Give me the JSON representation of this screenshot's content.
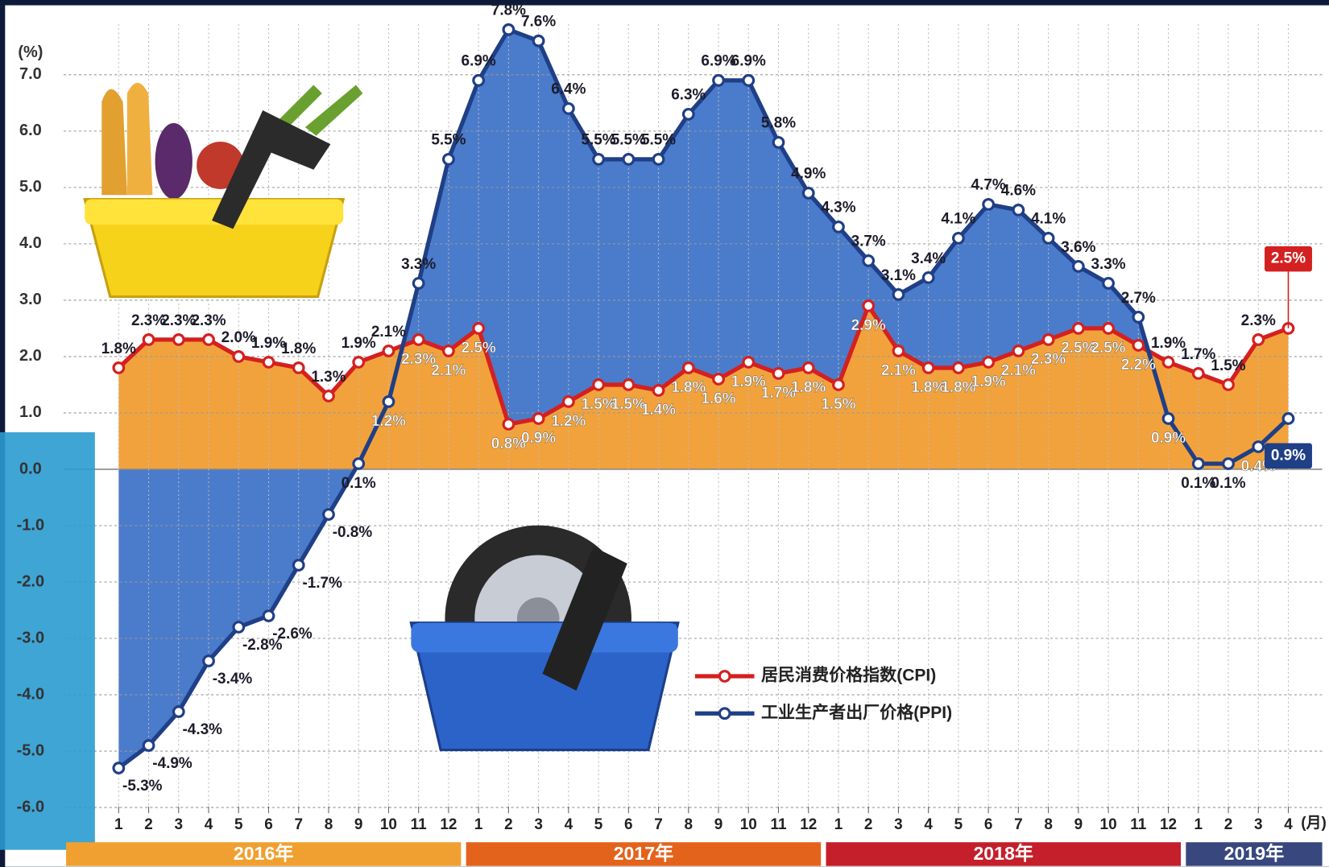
{
  "chart_data": {
    "type": "line",
    "y_unit": "(%)",
    "x_unit": "(月)",
    "categories": [
      "1",
      "2",
      "3",
      "4",
      "5",
      "6",
      "7",
      "8",
      "9",
      "10",
      "11",
      "12",
      "1",
      "2",
      "3",
      "4",
      "5",
      "6",
      "7",
      "8",
      "9",
      "10",
      "11",
      "12",
      "1",
      "2",
      "3",
      "4",
      "5",
      "6",
      "7",
      "8",
      "9",
      "10",
      "11",
      "12",
      "1",
      "2",
      "3",
      "4"
    ],
    "years": [
      "2016年",
      "2017年",
      "2018年",
      "2019年"
    ],
    "year_colors": [
      "#f0a030",
      "#e4631c",
      "#c41f2a",
      "#38487e"
    ],
    "series": [
      {
        "name": "居民消费价格指数(CPI)",
        "color": "#d42020",
        "fill": "#f2a23c",
        "values": [
          1.8,
          2.3,
          2.3,
          2.3,
          2.0,
          1.9,
          1.8,
          1.3,
          1.9,
          2.1,
          2.3,
          2.1,
          2.5,
          0.8,
          0.9,
          1.2,
          1.5,
          1.5,
          1.4,
          1.8,
          1.6,
          1.9,
          1.7,
          1.8,
          1.5,
          2.9,
          2.1,
          1.8,
          1.8,
          1.9,
          2.1,
          2.3,
          2.5,
          2.5,
          2.2,
          1.9,
          1.7,
          1.5,
          2.3,
          2.5
        ],
        "value_labels": [
          "1.8%",
          "2.3%",
          "2.3%",
          "2.3%",
          "2.0%",
          "1.9%",
          "1.8%",
          "1.3%",
          "1.9%",
          "2.1%",
          "2.3%",
          "2.1%",
          "2.5%",
          "0.8%",
          "0.9%",
          "1.2%",
          "1.5%",
          "1.5%",
          "1.4%",
          "1.8%",
          "1.6%",
          "1.9%",
          "1.7%",
          "1.8%",
          "1.5%",
          "2.9%",
          "2.1%",
          "1.8%",
          "1.8%",
          "1.9%",
          "2.1%",
          "2.3%",
          "2.5%",
          "2.5%",
          "2.2%",
          "1.9%",
          "1.7%",
          "1.5%",
          "2.3%",
          "2.5%"
        ]
      },
      {
        "name": "工业生产者出厂价格(PPI)",
        "color": "#1f3f86",
        "fill": "#4b7bcb",
        "values": [
          -5.3,
          -4.9,
          -4.3,
          -3.4,
          -2.8,
          -2.6,
          -1.7,
          -0.8,
          0.1,
          1.2,
          3.3,
          5.5,
          6.9,
          7.8,
          7.6,
          6.4,
          5.5,
          5.5,
          5.5,
          6.3,
          6.9,
          6.9,
          5.8,
          4.9,
          4.3,
          3.7,
          3.1,
          3.4,
          4.1,
          4.7,
          4.6,
          4.1,
          3.6,
          3.3,
          2.7,
          0.9,
          0.1,
          0.1,
          0.4,
          0.9
        ],
        "value_labels": [
          "-5.3%",
          "-4.9%",
          "-4.3%",
          "-3.4%",
          "-2.8%",
          "-2.6%",
          "-1.7%",
          "-0.8%",
          "0.1%",
          "1.2%",
          "3.3%",
          "5.5%",
          "6.9%",
          "7.8%",
          "7.6%",
          "6.4%",
          "5.5%",
          "5.5%",
          "5.5%",
          "6.3%",
          "6.9%",
          "6.9%",
          "5.8%",
          "4.9%",
          "4.3%",
          "3.7%",
          "3.1%",
          "3.4%",
          "4.1%",
          "4.7%",
          "4.6%",
          "4.1%",
          "3.6%",
          "3.3%",
          "2.7%",
          "0.9%",
          "0.1%",
          "0.1%",
          "0.4%",
          "0.9%"
        ]
      }
    ],
    "ylim": [
      -6.1,
      7.9
    ],
    "yticks": [
      {
        "value": -6,
        "label": "-6.0"
      },
      {
        "value": -5,
        "label": "-5.0"
      },
      {
        "value": -4,
        "label": "-4.0"
      },
      {
        "value": -3,
        "label": "-3.0"
      },
      {
        "value": -2,
        "label": "-2.0"
      },
      {
        "value": -1,
        "label": "-1.0"
      },
      {
        "value": 0,
        "label": "0.0"
      },
      {
        "value": 1,
        "label": "1.0"
      },
      {
        "value": 2,
        "label": "2.0"
      },
      {
        "value": 3,
        "label": "3.0"
      },
      {
        "value": 4,
        "label": "4.0"
      },
      {
        "value": 5,
        "label": "5.0"
      },
      {
        "value": 6,
        "label": "6.0"
      },
      {
        "value": 7,
        "label": "7.0"
      }
    ],
    "grid": true
  }
}
